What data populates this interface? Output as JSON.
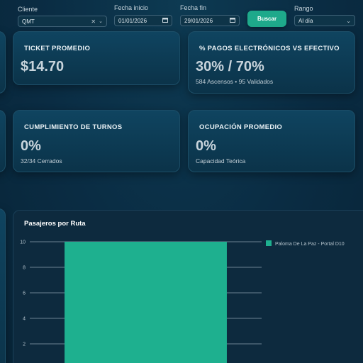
{
  "filters": {
    "cliente_label": "Cliente",
    "cliente_value": "QMT",
    "fecha_inicio_label": "Fecha inicio",
    "fecha_inicio_value": "01/01/2026",
    "fecha_fin_label": "Fecha fin",
    "fecha_fin_value": "29/01/2026",
    "buscar_label": "Buscar",
    "rango_label": "Rango",
    "rango_value": "Al día"
  },
  "kpis": {
    "ticket": {
      "title": "TICKET PROMEDIO",
      "value": "$14.70"
    },
    "pagos": {
      "title": "% PAGOS ELECTRÓNICOS VS EFECTIVO",
      "value": "30% / 70%",
      "sub": "584 Ascensos • 95 Validados"
    },
    "turnos": {
      "title": "CUMPLIMIENTO DE TURNOS",
      "value": "0%",
      "sub": "32/34 Cerrados"
    },
    "ocupacion": {
      "title": "OCUPACIÓN PROMEDIO",
      "value": "0%",
      "sub": "Capacidad Teórica"
    }
  },
  "chart": {
    "title": "Pasajeros por Ruta"
  },
  "colors": {
    "accent": "#1ea98b",
    "bar": "#1eb08f"
  },
  "chart_data": {
    "type": "bar",
    "title": "Pasajeros por Ruta",
    "categories": [
      "Paloma De La Paz - Portal D10"
    ],
    "series": [
      {
        "name": "Paloma De La Paz - Portal D10",
        "values": [
          10
        ]
      }
    ],
    "yticks": [
      2,
      4,
      6,
      8,
      10
    ],
    "ylim": [
      0,
      10
    ],
    "grid": true,
    "legend": "right"
  }
}
